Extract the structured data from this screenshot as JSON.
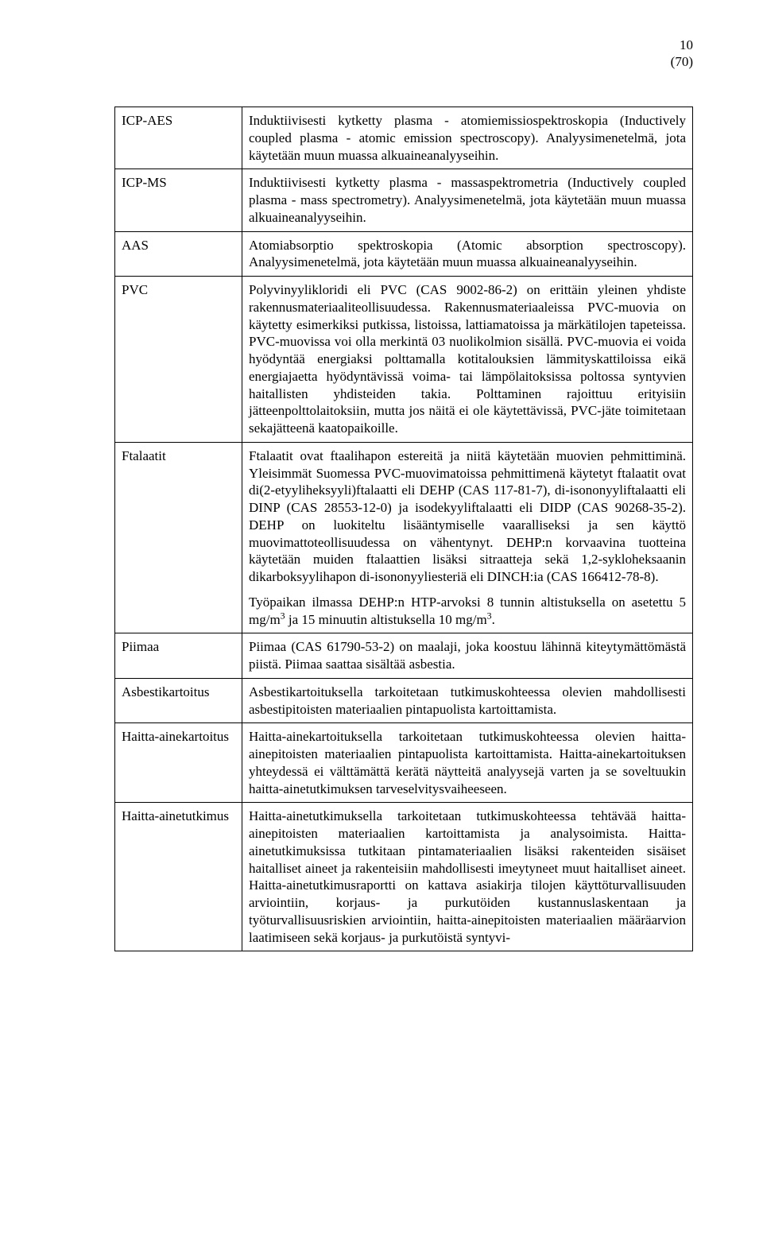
{
  "header": {
    "page_number": "10",
    "total": "(70)"
  },
  "rows": [
    {
      "term": "ICP-AES",
      "paragraphs": [
        "Induktiivisesti kytketty plasma - atomiemissiospektroskopia (Inductively coupled plasma - atomic emission spectroscopy). Analyysimenetelmä, jota käytetään muun muassa alkuaineanalyyseihin."
      ]
    },
    {
      "term": "ICP-MS",
      "paragraphs": [
        "Induktiivisesti kytketty plasma - massaspektrometria (Inductively coupled plasma - mass spectrometry). Analyysimenetelmä, jota käytetään muun muassa alkuaineanalyyseihin."
      ]
    },
    {
      "term": "AAS",
      "paragraphs": [
        "Atomiabsorptio spektroskopia (Atomic absorption spectroscopy). Analyysimenetelmä, jota käytetään muun muassa alkuaineanalyyseihin."
      ]
    },
    {
      "term": "PVC",
      "paragraphs": [
        "Polyvinyylikloridi eli PVC (CAS 9002-86-2) on erittäin yleinen yhdiste rakennusmateriaaliteollisuudessa. Rakennusmateriaaleissa PVC-muovia on käytetty esimerkiksi putkissa, listoissa, lattiamatoissa ja märkätilojen tapeteissa. PVC-muovissa voi olla merkintä 03 nuolikolmion sisällä. PVC-muovia ei voida hyödyntää energiaksi polttamalla kotitalouksien lämmityskattiloissa eikä energiajaetta hyödyntävissä voima- tai lämpölaitoksissa poltossa syntyvien haitallisten yhdisteiden takia. Polttaminen rajoittuu erityisiin jätteenpolttolaitoksiin, mutta jos näitä ei ole käytettävissä, PVC-jäte toimitetaan sekajätteenä kaatopaikoille."
      ]
    },
    {
      "term": "Ftalaatit",
      "paragraphs": [
        "Ftalaatit ovat ftaalihapon estereitä ja niitä käytetään muovien pehmittiminä. Yleisimmät Suomessa PVC-muovimatoissa pehmittimenä käytetyt ftalaatit ovat di(2-etyyliheksyyli)ftalaatti eli DEHP (CAS 117-81-7), di-isononyyliftalaatti eli DINP (CAS 28553-12-0) ja isodekyyliftalaatti eli DIDP (CAS 90268-35-2). DEHP on luokiteltu lisääntymiselle vaaralliseksi ja sen käyttö muovimattoteollisuudessa on vähentynyt. DEHP:n korvaavina tuotteina käytetään muiden ftalaattien lisäksi sitraatteja sekä 1,2-sykloheksaanin dikarboksyylihapon di-isononyyliesteriä eli DINCH:ia (CAS 166412-78-8).",
        "Työpaikan ilmassa DEHP:n HTP-arvoksi 8 tunnin altistuksella on asetettu 5 mg/m<sup>3</sup> ja 15 minuutin altistuksella 10 mg/m<sup>3</sup>."
      ],
      "html": true
    },
    {
      "term": "Piimaa",
      "paragraphs": [
        "Piimaa (CAS 61790-53-2) on maalaji, joka koostuu lähinnä kiteytymättömästä piistä. Piimaa saattaa sisältää asbestia."
      ]
    },
    {
      "term": "Asbestikartoitus",
      "paragraphs": [
        "Asbestikartoituksella tarkoitetaan tutkimuskohteessa olevien mahdollisesti asbestipitoisten materiaalien pintapuolista kartoittamista."
      ]
    },
    {
      "term": "Haitta-ainekartoitus",
      "paragraphs": [
        "Haitta-ainekartoituksella tarkoitetaan tutkimuskohteessa olevien haitta-ainepitoisten materiaalien pintapuolista kartoittamista. Haitta-ainekartoituksen yhteydessä ei välttämättä kerätä näytteitä analyysejä varten ja se soveltuukin haitta-ainetutkimuksen tarveselvitysvaiheeseen."
      ]
    },
    {
      "term": "Haitta-ainetutkimus",
      "paragraphs": [
        "Haitta-ainetutkimuksella tarkoitetaan tutkimuskohteessa tehtävää haitta-ainepitoisten materiaalien kartoittamista ja analysoimista. Haitta-ainetutkimuksissa tutkitaan pintamateriaalien lisäksi rakenteiden sisäiset haitalliset aineet ja rakenteisiin mahdollisesti imeytyneet muut haitalliset aineet. Haitta-ainetutkimusraportti on kattava asiakirja tilojen käyttöturvallisuuden arviointiin, korjaus- ja purkutöiden kustannuslaskentaan ja työturvallisuusriskien arviointiin, haitta-ainepitoisten materiaalien määräarvion laatimiseen sekä korjaus- ja purkutöistä syntyvi-"
      ]
    }
  ]
}
